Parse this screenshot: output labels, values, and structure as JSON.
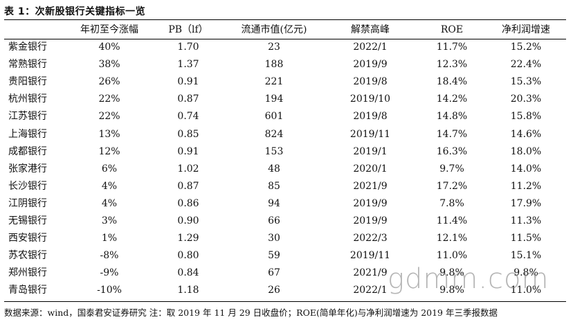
{
  "title": "表 1：次新股银行关键指标一览",
  "table": {
    "headers": [
      "",
      "年初至今涨幅",
      "PB（lf）",
      "流通市值(亿元)",
      "解禁高峰",
      "ROE",
      "净利润增速"
    ],
    "rows": [
      [
        "紫金银行",
        "40%",
        "1.70",
        "23",
        "2022/1",
        "11.7%",
        "15.2%"
      ],
      [
        "常熟银行",
        "38%",
        "1.37",
        "188",
        "2019/9",
        "12.3%",
        "22.4%"
      ],
      [
        "贵阳银行",
        "26%",
        "0.91",
        "221",
        "2019/8",
        "18.4%",
        "15.3%"
      ],
      [
        "杭州银行",
        "22%",
        "0.87",
        "194",
        "2019/10",
        "14.2%",
        "20.3%"
      ],
      [
        "江苏银行",
        "22%",
        "0.74",
        "601",
        "2019/8",
        "14.8%",
        "15.8%"
      ],
      [
        "上海银行",
        "13%",
        "0.85",
        "824",
        "2019/11",
        "14.7%",
        "14.6%"
      ],
      [
        "成都银行",
        "12%",
        "0.91",
        "153",
        "2019/1",
        "16.3%",
        "18.0%"
      ],
      [
        "张家港行",
        "6%",
        "1.02",
        "48",
        "2020/1",
        "9.7%",
        "14.0%"
      ],
      [
        "长沙银行",
        "4%",
        "0.87",
        "85",
        "2021/9",
        "17.2%",
        "11.2%"
      ],
      [
        "江阴银行",
        "4%",
        "0.86",
        "94",
        "2019/9",
        "7.8%",
        "17.9%"
      ],
      [
        "无锡银行",
        "3%",
        "0.90",
        "66",
        "2019/9",
        "11.4%",
        "11.3%"
      ],
      [
        "西安银行",
        "1%",
        "1.29",
        "30",
        "2022/3",
        "12.1%",
        "11.5%"
      ],
      [
        "苏农银行",
        "-8%",
        "0.80",
        "59",
        "2019/11",
        "11.0%",
        "15.1%"
      ],
      [
        "郑州银行",
        "-9%",
        "0.84",
        "67",
        "2021/9",
        "9.8%",
        "9.8%"
      ],
      [
        "青岛银行",
        "-10%",
        "1.18",
        "26",
        "2022/1",
        "9.8%",
        "11.0%"
      ]
    ]
  },
  "source": "数据来源：wind，国泰君安证券研究 注：取 2019 年 11 月 29 日收盘价；ROE(简单年化)与净利润增速为 2019 年三季报数据",
  "watermark": "gdmm.com"
}
